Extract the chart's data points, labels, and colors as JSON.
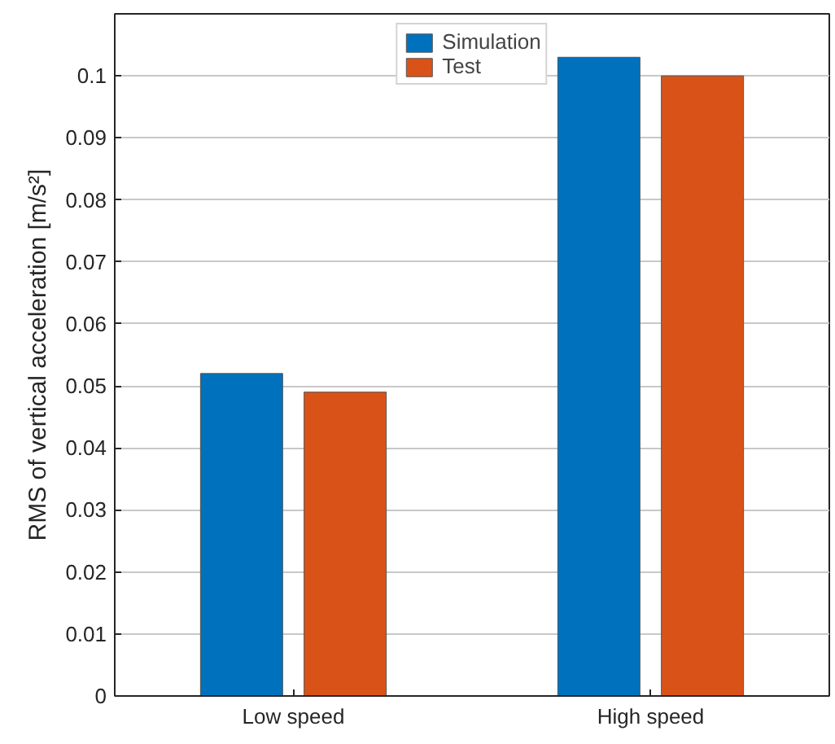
{
  "chart_data": {
    "type": "bar",
    "ylabel": "RMS of vertical acceleration [m/s²]",
    "categories": [
      "Low speed",
      "High speed"
    ],
    "series": [
      {
        "name": "Simulation",
        "color": "#0072bd",
        "values": [
          0.052,
          0.103
        ]
      },
      {
        "name": "Test",
        "color": "#d95319",
        "values": [
          0.049,
          0.1
        ]
      }
    ],
    "ylim": [
      0,
      0.11
    ],
    "yticks": [
      0,
      0.01,
      0.02,
      0.03,
      0.04,
      0.05,
      0.06,
      0.07,
      0.08,
      0.09,
      0.1
    ],
    "grid": "y",
    "legend": "top"
  }
}
